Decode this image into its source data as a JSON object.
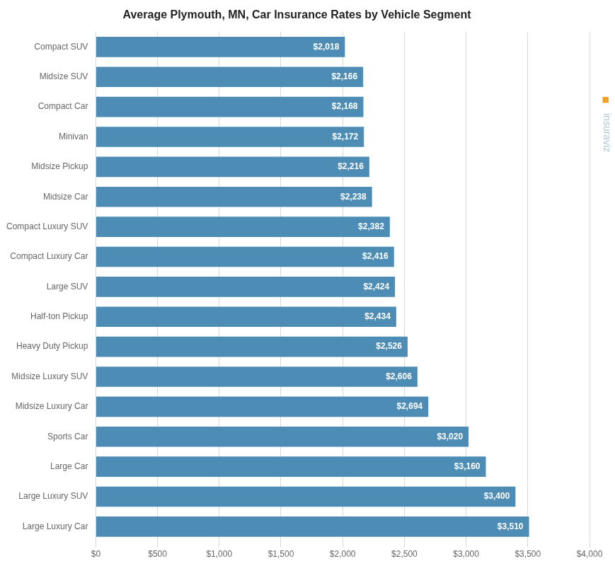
{
  "chart_data": {
    "type": "bar",
    "orientation": "horizontal",
    "title": "Average Plymouth, MN, Car Insurance Rates by Vehicle Segment",
    "categories": [
      "Compact SUV",
      "Midsize SUV",
      "Compact Car",
      "Minivan",
      "Midsize Pickup",
      "Midsize Car",
      "Compact Luxury SUV",
      "Compact Luxury Car",
      "Large SUV",
      "Half-ton Pickup",
      "Heavy Duty Pickup",
      "Midsize Luxury SUV",
      "Midsize Luxury Car",
      "Sports Car",
      "Large Car",
      "Large Luxury SUV",
      "Large Luxury Car"
    ],
    "values": [
      2018,
      2166,
      2168,
      2172,
      2216,
      2238,
      2382,
      2416,
      2424,
      2434,
      2526,
      2606,
      2694,
      3020,
      3160,
      3400,
      3510
    ],
    "value_labels": [
      "$2,018",
      "$2,166",
      "$2,168",
      "$2,172",
      "$2,216",
      "$2,238",
      "$2,382",
      "$2,416",
      "$2,424",
      "$2,434",
      "$2,526",
      "$2,606",
      "$2,694",
      "$3,020",
      "$3,160",
      "$3,400",
      "$3,510"
    ],
    "color": "#4d8db5",
    "xlim": [
      0,
      4000
    ],
    "xticks": [
      {
        "value": 0,
        "label": "$0"
      },
      {
        "value": 500,
        "label": "$500"
      },
      {
        "value": 1000,
        "label": "$1,000"
      },
      {
        "value": 1500,
        "label": "$1,500"
      },
      {
        "value": 2000,
        "label": "$2,000"
      },
      {
        "value": 2500,
        "label": "$2,500"
      },
      {
        "value": 3000,
        "label": "$3,000"
      },
      {
        "value": 3500,
        "label": "$3,500"
      },
      {
        "value": 4000,
        "label": "$4,000"
      }
    ],
    "grid": true,
    "data_labels": true,
    "annotations": [
      "■",
      "insuraviz"
    ]
  }
}
